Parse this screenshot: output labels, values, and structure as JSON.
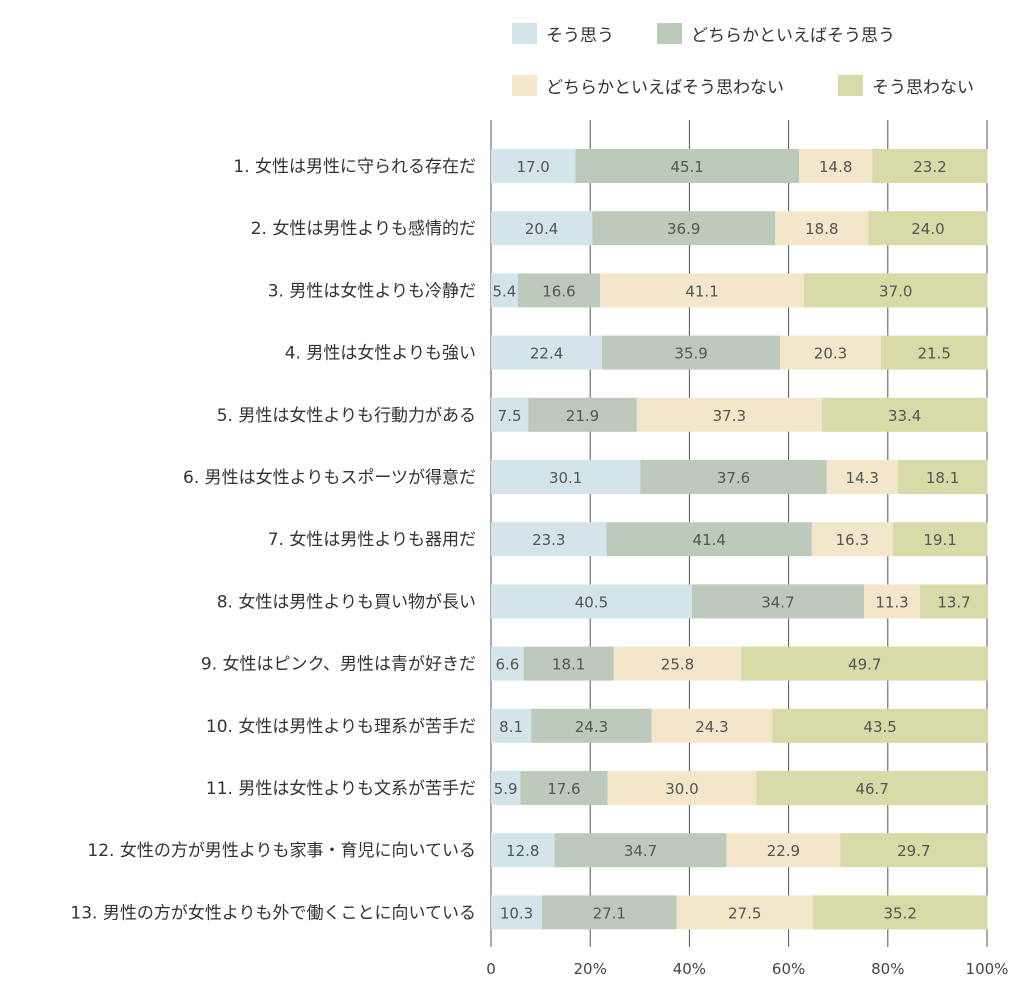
{
  "chart_data": {
    "type": "stacked-bar-horizontal",
    "title": "",
    "xlabel": "",
    "ylabel": "",
    "xlim": [
      0,
      100
    ],
    "x_ticks": [
      "0",
      "20%",
      "40%",
      "60%",
      "80%",
      "100%"
    ],
    "legend_position": "top",
    "categories": [
      "1. 女性は男性に守られる存在だ",
      "2. 女性は男性よりも感情的だ",
      "3. 男性は女性よりも冷静だ",
      "4. 男性は女性よりも強い",
      "5. 男性は女性よりも行動力がある",
      "6. 男性は女性よりもスポーツが得意だ",
      "7. 女性は男性よりも器用だ",
      "8. 女性は男性よりも買い物が長い",
      "9. 女性はピンク、男性は青が好きだ",
      "10. 女性は男性よりも理系が苦手だ",
      "11. 男性は女性よりも文系が苦手だ",
      "12. 女性の方が男性よりも家事・育児に向いている",
      "13. 男性の方が女性よりも外で働くことに向いている"
    ],
    "series": [
      {
        "name": "そう思う",
        "color": "#d3e5ea",
        "values": [
          17.0,
          20.4,
          5.4,
          22.4,
          7.5,
          30.1,
          23.3,
          40.5,
          6.6,
          8.1,
          5.9,
          12.8,
          10.3
        ],
        "labels": [
          "17.0",
          "20.4",
          "5.4",
          "22.4",
          "7.5",
          "30.1",
          "23.3",
          "40.5",
          "6.6",
          "8.1",
          "5.9",
          "12.8",
          "10.3"
        ]
      },
      {
        "name": "どちらかといえばそう思う",
        "color": "#bcc9bb",
        "values": [
          45.1,
          36.9,
          16.6,
          35.9,
          21.9,
          37.6,
          41.4,
          34.7,
          18.1,
          24.3,
          17.6,
          34.7,
          27.1
        ],
        "labels": [
          "45.1",
          "36.9",
          "16.6",
          "35.9",
          "21.9",
          "37.6",
          "41.4",
          "34.7",
          "18.1",
          "24.3",
          "17.6",
          "34.7",
          "27.1"
        ]
      },
      {
        "name": "どちらかといえばそう思わない",
        "color": "#f3e6cb",
        "values": [
          14.8,
          18.8,
          41.1,
          20.3,
          37.3,
          14.3,
          16.3,
          11.3,
          25.8,
          24.3,
          30.0,
          22.9,
          27.5
        ],
        "labels": [
          "14.8",
          "18.8",
          "41.1",
          "20.3",
          "37.3",
          "14.3",
          "16.3",
          "11.3",
          "25.8",
          "24.3",
          "30.0",
          "22.9",
          "27.5"
        ]
      },
      {
        "name": "そう思わない",
        "color": "#d8daa8",
        "values": [
          23.2,
          24.0,
          37.0,
          21.5,
          33.4,
          18.1,
          19.1,
          13.7,
          49.7,
          43.5,
          46.7,
          29.7,
          35.2
        ],
        "labels": [
          "23.2",
          "24.0",
          "37.0",
          "21.5",
          "33.4",
          "18.1",
          "19.1",
          "13.7",
          "49.7",
          "43.5",
          "46.7",
          "29.7",
          "35.2"
        ]
      }
    ]
  }
}
